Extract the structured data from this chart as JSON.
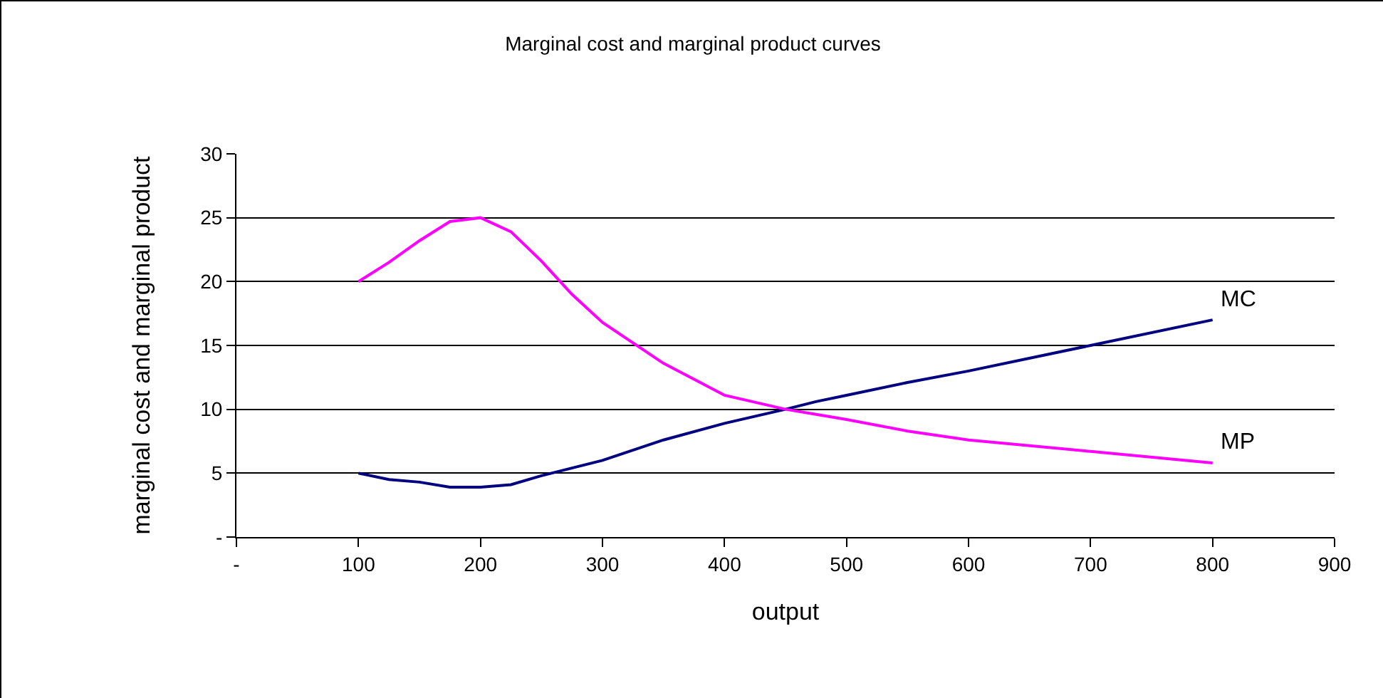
{
  "chart_data": {
    "type": "line",
    "title": "Marginal cost and marginal product curves",
    "xlabel": "output",
    "ylabel": "marginal cost and marginal product",
    "x": [
      100,
      125,
      150,
      175,
      200,
      225,
      250,
      275,
      300,
      350,
      400,
      450,
      475,
      500,
      550,
      600,
      700,
      800
    ],
    "series": [
      {
        "name": "MC",
        "color": "#000080",
        "values": [
          5,
          4.5,
          4.3,
          3.9,
          3.9,
          4.1,
          4.8,
          5.4,
          6,
          7.6,
          8.9,
          10,
          10.6,
          11.1,
          12.1,
          13,
          15,
          17
        ]
      },
      {
        "name": "MP",
        "color": "#ff00ff",
        "values": [
          20,
          21.5,
          23.2,
          24.7,
          25,
          23.9,
          21.6,
          19,
          16.8,
          13.6,
          11.1,
          10,
          9.6,
          9.2,
          8.3,
          7.6,
          6.7,
          5.8
        ]
      }
    ],
    "xlim": [
      0,
      900
    ],
    "xticks": [
      {
        "value": 0,
        "label": "-"
      },
      100,
      200,
      300,
      400,
      500,
      600,
      700,
      800,
      900
    ],
    "ylim": [
      0,
      30
    ],
    "yticks": [
      {
        "value": 0,
        "label": "-"
      },
      5,
      10,
      15,
      20,
      25,
      30
    ],
    "grid": "y",
    "legend": false,
    "marker": "none",
    "line_style": "solid"
  }
}
